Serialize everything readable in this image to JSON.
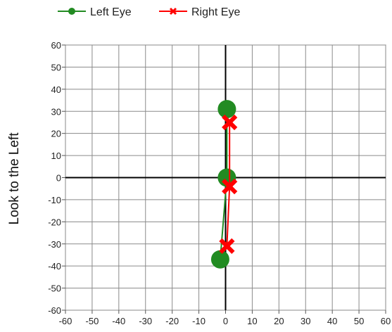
{
  "chart_data": {
    "type": "line",
    "title": "",
    "xlabel": "",
    "ylabel": "Look to the Left",
    "xlim": [
      -60,
      60
    ],
    "ylim": [
      -60,
      60
    ],
    "x_ticks": [
      -60,
      -50,
      -40,
      -30,
      -20,
      -10,
      0,
      10,
      20,
      30,
      40,
      50,
      60
    ],
    "y_ticks": [
      60,
      50,
      40,
      30,
      20,
      10,
      0,
      -10,
      -20,
      -30,
      -40,
      -50,
      -60
    ],
    "grid": true,
    "legend_position": "top-left",
    "series": [
      {
        "name": "Left Eye",
        "marker": "circle",
        "color": "#228B22",
        "points": [
          {
            "x": 0.5,
            "y": 31
          },
          {
            "x": 0.5,
            "y": 0
          },
          {
            "x": -2,
            "y": -37
          }
        ]
      },
      {
        "name": "Right Eye",
        "marker": "x",
        "color": "#FF0000",
        "points": [
          {
            "x": 1.5,
            "y": 25
          },
          {
            "x": 1.5,
            "y": -4
          },
          {
            "x": 0.5,
            "y": -31
          }
        ]
      }
    ]
  }
}
